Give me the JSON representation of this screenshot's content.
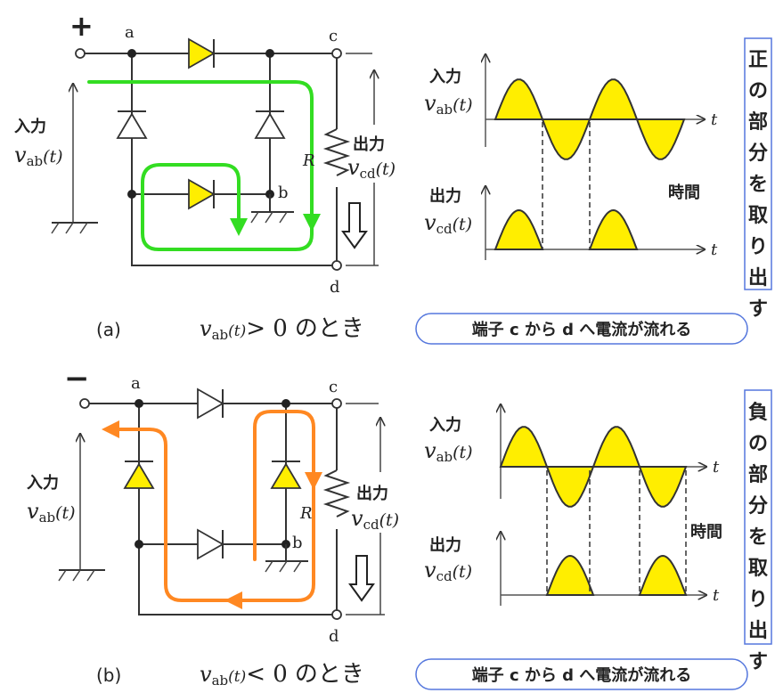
{
  "labels": {
    "plus": "+",
    "minus": "−",
    "node_a": "a",
    "node_b": "b",
    "node_c": "c",
    "node_d": "d",
    "resistor": "R",
    "input": "入力",
    "output": "出力",
    "v": "v",
    "sub_ab": "ab",
    "sub_cd": "cd",
    "t_paren": "(t)",
    "t_axis": "t",
    "time": "時間"
  },
  "panel_a": {
    "caption_prefix": "(a)",
    "condition_op": "> 0",
    "condition_suffix": "のとき",
    "note": "端子 c から d へ電流が流れる",
    "side_text": "正の部分を取り出す",
    "path_color": "#33dd22"
  },
  "panel_b": {
    "caption_prefix": "(b)",
    "condition_op": "< 0",
    "condition_suffix": "のとき",
    "note": "端子 c から d へ電流が流れる",
    "side_text": "負の部分を取り出す",
    "path_color": "#ff8822"
  },
  "colors": {
    "diode_fill": "#ffee00",
    "wave_fill": "#ffee00",
    "box_border": "#5577dd",
    "wire": "#333333"
  },
  "icons": [
    "diode-symbol",
    "resistor-symbol",
    "ground-symbol",
    "down-arrow-icon"
  ]
}
